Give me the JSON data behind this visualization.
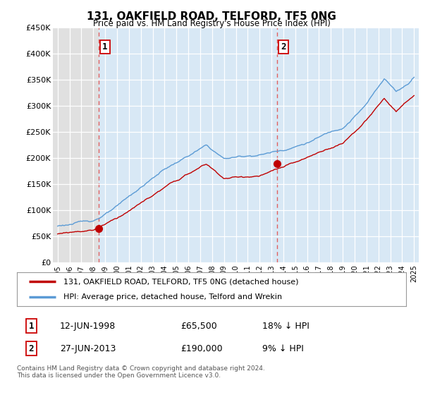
{
  "title": "131, OAKFIELD ROAD, TELFORD, TF5 0NG",
  "subtitle": "Price paid vs. HM Land Registry's House Price Index (HPI)",
  "ylabel_ticks": [
    "£0",
    "£50K",
    "£100K",
    "£150K",
    "£200K",
    "£250K",
    "£300K",
    "£350K",
    "£400K",
    "£450K"
  ],
  "ylim": [
    0,
    450000
  ],
  "xlim_start": 1994.6,
  "xlim_end": 2025.4,
  "sale1_date": 1998.45,
  "sale1_price": 65500,
  "sale1_label": "1",
  "sale2_date": 2013.49,
  "sale2_price": 190000,
  "sale2_label": "2",
  "line_color_hpi": "#5b9bd5",
  "line_color_price": "#c00000",
  "marker_color": "#c00000",
  "dashed_line_color": "#e06060",
  "bg_left": "#e8e8e8",
  "bg_between": "#dce8f5",
  "bg_right": "#dce8f5",
  "legend_label_price": "131, OAKFIELD ROAD, TELFORD, TF5 0NG (detached house)",
  "legend_label_hpi": "HPI: Average price, detached house, Telford and Wrekin",
  "footnote": "Contains HM Land Registry data © Crown copyright and database right 2024.\nThis data is licensed under the Open Government Licence v3.0.",
  "xticklabels": [
    "1995",
    "1996",
    "1997",
    "1998",
    "1999",
    "2000",
    "2001",
    "2002",
    "2003",
    "2004",
    "2005",
    "2006",
    "2007",
    "2008",
    "2009",
    "2010",
    "2011",
    "2012",
    "2013",
    "2014",
    "2015",
    "2016",
    "2017",
    "2018",
    "2019",
    "2020",
    "2021",
    "2022",
    "2023",
    "2024",
    "2025"
  ]
}
